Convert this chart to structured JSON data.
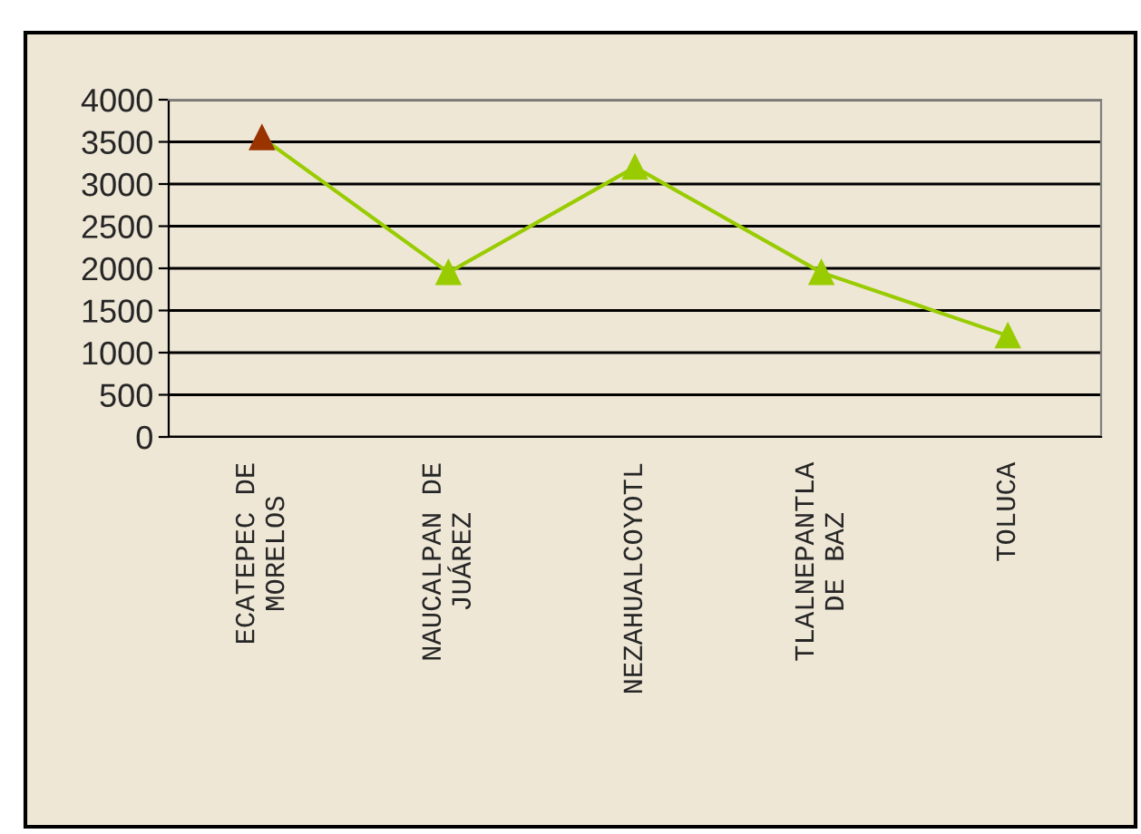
{
  "chart_data": {
    "type": "line",
    "categories": [
      "ECATEPEC DE\nMORELOS",
      "NAUCALPAN DE\nJUÁREZ",
      "NEZAHUALCOYOTL",
      "TLALNEPANTLA\nDE BAZ",
      "TOLUCA"
    ],
    "series": [
      {
        "color": "#99cc00",
        "colors": [
          "#993300",
          "#99cc00",
          "#99cc00",
          "#99cc00",
          "#99cc00"
        ],
        "values": [
          3550,
          1950,
          3200,
          1950,
          1200
        ]
      }
    ],
    "ylim": [
      0,
      4000
    ],
    "yticks": [
      0,
      500,
      1000,
      1500,
      2000,
      2500,
      3000,
      3500,
      4000
    ],
    "grid": "y",
    "marker": "triangle",
    "legend": false
  }
}
